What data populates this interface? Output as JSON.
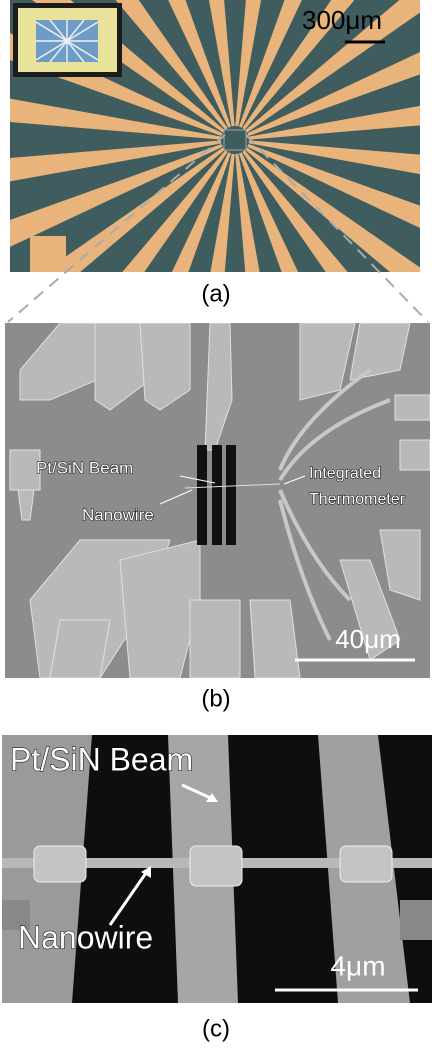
{
  "panels": {
    "a": {
      "scale_bar": "300μm",
      "label": "(a)"
    },
    "b": {
      "beam_label": "Pt/SiN Beam",
      "nanowire_label": "Nanowire",
      "thermometer_label": [
        "Integrated",
        "Thermometer"
      ],
      "scale_bar": "40μm",
      "label": "(b)"
    },
    "c": {
      "beam_label": "Pt/SiN Beam",
      "nanowire_label": "Nanowire",
      "scale_bar": "4μm",
      "label": "(c)"
    }
  }
}
